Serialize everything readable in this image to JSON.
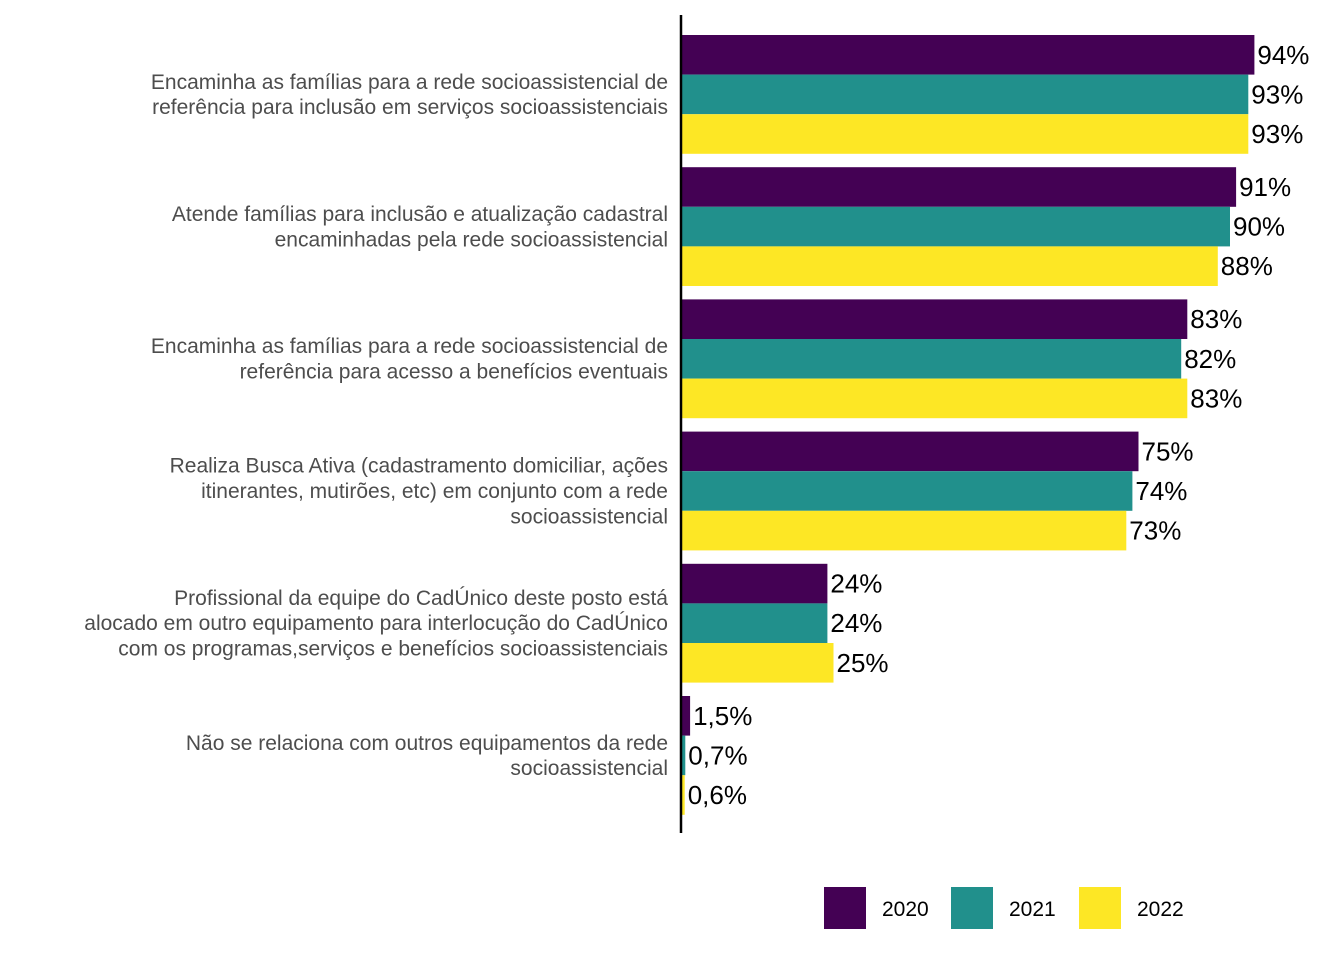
{
  "chart_data": {
    "type": "bar",
    "orientation": "horizontal",
    "categories": [
      [
        "Encaminha as famílias para a rede socioassistencial de",
        "referência para inclusão em serviços socioassistenciais"
      ],
      [
        "Atende famílias para inclusão e atualização cadastral",
        "encaminhadas pela rede socioassistencial"
      ],
      [
        "Encaminha as famílias para a rede socioassistencial de",
        "referência para acesso a benefícios eventuais"
      ],
      [
        "Realiza Busca Ativa (cadastramento domiciliar, ações",
        "itinerantes, mutirões, etc) em conjunto com a rede",
        "socioassistencial"
      ],
      [
        "Profissional da equipe do CadÚnico deste posto está",
        "alocado em outro equipamento para interlocução do CadÚnico",
        "com os programas,serviços e benefícios socioassistenciais"
      ],
      [
        "Não se relaciona com outros equipamentos da rede",
        "socioassistencial"
      ]
    ],
    "series": [
      {
        "name": "2020",
        "color": "#440154",
        "values": [
          94,
          91,
          83,
          75,
          24,
          1.5
        ],
        "labels": [
          "94%",
          "91%",
          "83%",
          "75%",
          "24%",
          "1,5%"
        ]
      },
      {
        "name": "2021",
        "color": "#21908C",
        "values": [
          93,
          90,
          82,
          74,
          24,
          0.7
        ],
        "labels": [
          "93%",
          "90%",
          "82%",
          "74%",
          "24%",
          "0,7%"
        ]
      },
      {
        "name": "2022",
        "color": "#FDE725",
        "values": [
          93,
          88,
          83,
          73,
          25,
          0.6
        ],
        "labels": [
          "93%",
          "88%",
          "83%",
          "73%",
          "25%",
          "0,6%"
        ]
      }
    ],
    "xlim": [
      0,
      100
    ],
    "grid": false,
    "legend_position": "bottom"
  }
}
